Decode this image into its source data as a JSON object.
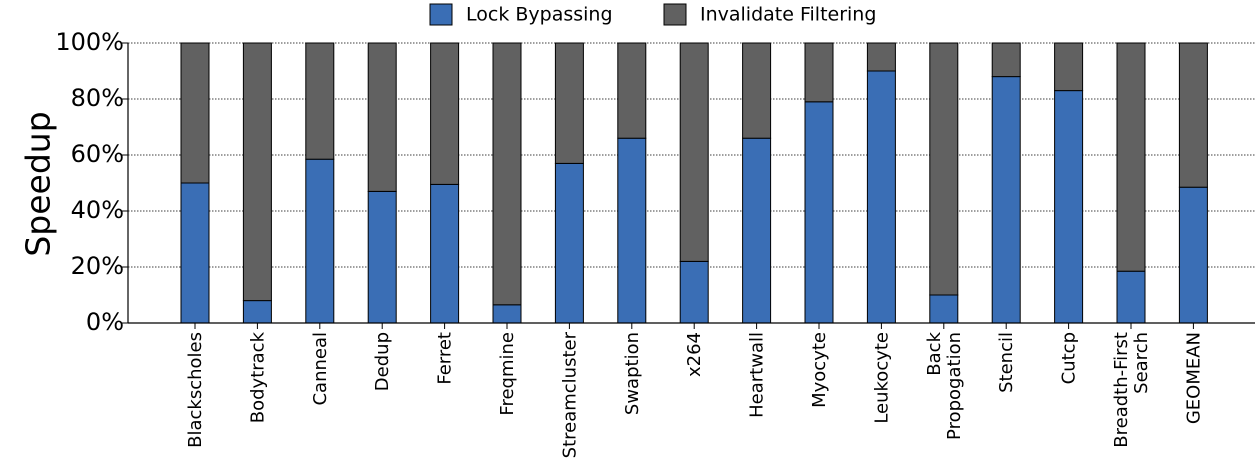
{
  "chart_data": {
    "type": "bar",
    "stacked": true,
    "ylabel": "Speedup",
    "xlabel": "",
    "ylim": [
      0,
      100
    ],
    "yticks": [
      "0%",
      "20%",
      "40%",
      "60%",
      "80%",
      "100%"
    ],
    "grid": "horizontal dotted",
    "legend_position": "top-center",
    "categories": [
      "Blackscholes",
      "Bodytrack",
      "Canneal",
      "Dedup",
      "Ferret",
      "Freqmine",
      "Streamcluster",
      "Swaption",
      "x264",
      "Heartwall",
      "Myocyte",
      "Leukocyte",
      "Back\nPropogation",
      "Stencil",
      "Cutcp",
      "Breadth-First\nSearch",
      "GEOMEAN"
    ],
    "series": [
      {
        "name": "Lock Bypassing",
        "color": "#3a6eb5",
        "values": [
          50,
          8,
          58.5,
          47,
          49.5,
          6.5,
          57,
          66,
          22,
          66,
          79,
          90,
          10,
          88,
          83,
          18.5,
          48.5
        ]
      },
      {
        "name": "Invalidate Filtering",
        "color": "#616161",
        "values": [
          50,
          92,
          41.5,
          53,
          50.5,
          93.5,
          43,
          34,
          78,
          34,
          21,
          10,
          90,
          12,
          17,
          81.5,
          51.5
        ]
      }
    ]
  }
}
